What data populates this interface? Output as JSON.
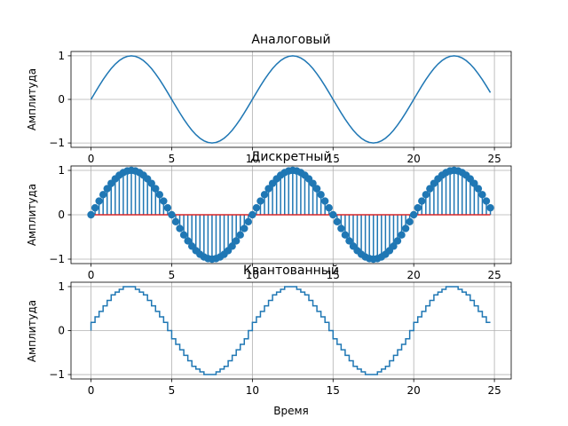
{
  "chart_data": [
    {
      "type": "line",
      "title": "Аналоговый",
      "xlabel": "",
      "ylabel": "Амплитуда",
      "xlim": [
        -1.24,
        26.04
      ],
      "ylim": [
        -1.1,
        1.1
      ],
      "xticks": [
        0,
        5,
        10,
        15,
        20,
        25
      ],
      "yticks": [
        -1,
        0,
        1
      ],
      "grid": true,
      "color": "#1f77b4",
      "series": [
        {
          "function": "sin(2*pi*0.1*x)",
          "x_range": [
            0,
            24.75
          ],
          "samples": 100
        }
      ]
    },
    {
      "type": "stem",
      "title": "Дискретный",
      "xlabel": "",
      "ylabel": "Амплитуда",
      "xlim": [
        -1.24,
        26.04
      ],
      "ylim": [
        -1.1,
        1.1
      ],
      "xticks": [
        0,
        5,
        10,
        15,
        20,
        25
      ],
      "yticks": [
        -1,
        0,
        1
      ],
      "grid": true,
      "color": "#1f77b4",
      "baseline_color": "#d62728",
      "series": [
        {
          "function": "sin(2*pi*0.1*x)",
          "x_start": 0,
          "x_step": 0.25,
          "count": 100
        }
      ]
    },
    {
      "type": "step",
      "title": "Квантованный",
      "xlabel": "Время",
      "ylabel": "Амплитуда",
      "xlim": [
        -1.24,
        26.04
      ],
      "ylim": [
        -1.1,
        1.1
      ],
      "xticks": [
        0,
        5,
        10,
        15,
        20,
        25
      ],
      "yticks": [
        -1,
        0,
        1
      ],
      "grid": true,
      "color": "#1f77b4",
      "quantization_step": 0.0625,
      "series": [
        {
          "function": "round(sin(2*pi*0.1*x)/0.0625)*0.0625",
          "x_start": 0,
          "x_step": 0.25,
          "count": 100
        }
      ]
    }
  ]
}
